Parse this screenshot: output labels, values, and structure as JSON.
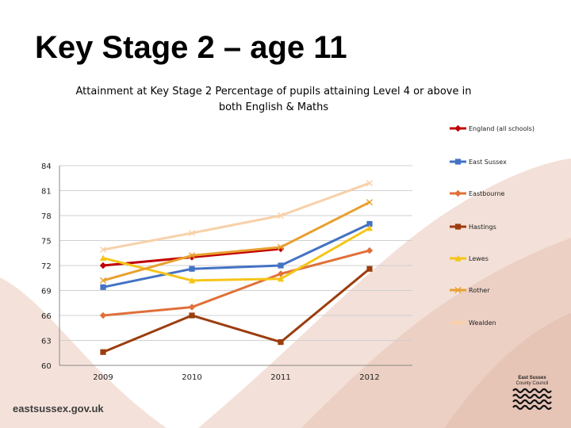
{
  "slide_title": "Key Stage 2 – age 11",
  "footer": {
    "url": "eastsussex.gov.uk"
  },
  "logo": {
    "line1": "East Sussex",
    "line2": "County Council"
  },
  "colors": {
    "bg_swoosh": "#f2ded6",
    "bg_swoosh_dark": "#e8c8bb"
  },
  "chart_data": {
    "type": "line",
    "title_line1": "Attainment at Key Stage 2 Percentage of pupils attaining Level 4 or above in",
    "title_line2": "both English & Maths",
    "categories": [
      "2009",
      "2010",
      "2011",
      "2012"
    ],
    "ylim": [
      60,
      84
    ],
    "yticks": [
      84,
      81,
      78,
      75,
      72,
      69,
      66,
      63,
      60
    ],
    "legend_position": "right",
    "series": [
      {
        "name": "England (all schools)",
        "color": "#c00000",
        "marker": "diamond",
        "values": [
          72,
          73,
          74,
          null
        ]
      },
      {
        "name": "East Sussex",
        "color": "#4472c4",
        "marker": "square",
        "values": [
          69.4,
          71.6,
          72,
          77
        ]
      },
      {
        "name": "Eastbourne",
        "color": "#e0703a",
        "marker": "diamond",
        "values": [
          66,
          67,
          71,
          73.8
        ]
      },
      {
        "name": "Hastings",
        "color": "#9c3d0e",
        "marker": "square",
        "values": [
          61.6,
          66,
          62.8,
          71.6
        ]
      },
      {
        "name": "Lewes",
        "color": "#f5c518",
        "marker": "triangle",
        "values": [
          72.9,
          70.2,
          70.4,
          76.5
        ]
      },
      {
        "name": "Rother",
        "color": "#e8a030",
        "marker": "x",
        "values": [
          70.2,
          73.2,
          74.2,
          79.6
        ]
      },
      {
        "name": "Wealden",
        "color": "#f8d0a8",
        "marker": "x",
        "values": [
          73.9,
          75.9,
          78,
          81.9
        ]
      }
    ]
  }
}
